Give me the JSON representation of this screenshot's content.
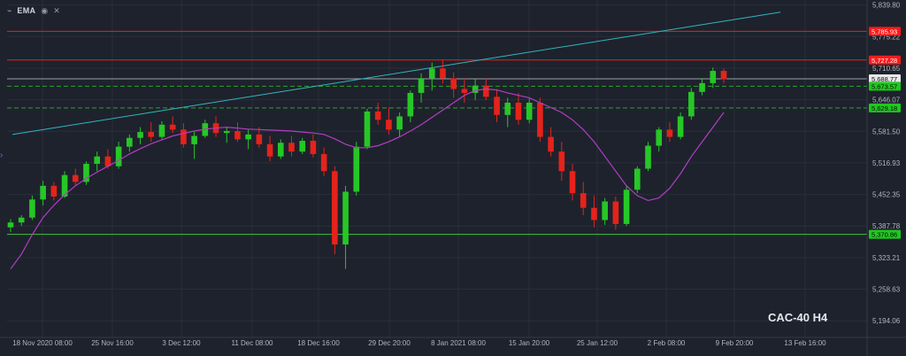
{
  "toolbar": {
    "indicator": "EMA",
    "icons": [
      "chart-icon",
      "eye-icon",
      "close-icon"
    ]
  },
  "watermark": "CAC-40 H4",
  "colors": {
    "background": "#1e222d",
    "grid": "#2a2e39",
    "axis_text": "#b2b5be",
    "up_candle": "#26c726",
    "down_candle": "#e5231b",
    "ema": "#b23ec2",
    "trendline": "#2fb7bd",
    "resistance": "#e5231b",
    "support_solid": "#3cc33c",
    "support_dashed": "#27a627",
    "label_green": "#1ec91e",
    "label_red": "#ff1a1a"
  },
  "chart_data": {
    "type": "candlestick",
    "title": "CAC-40 H4",
    "x_tick_labels": [
      "18 Nov 2020 08:00",
      "25 Nov 16:00",
      "3 Dec 12:00",
      "11 Dec 08:00",
      "18 Dec 16:00",
      "29 Dec 20:00",
      "8 Jan 2021 08:00",
      "15 Jan 20:00",
      "25 Jan 12:00",
      "2 Feb 08:00",
      "9 Feb 20:00",
      "13 Feb 16:00"
    ],
    "y_tick_labels": [
      5839.8,
      5775.22,
      5710.65,
      5646.07,
      5581.5,
      5516.93,
      5452.35,
      5387.78,
      5323.21,
      5258.63,
      5194.06
    ],
    "ylim": [
      5160,
      5850
    ],
    "price_lines": [
      {
        "name": "resistance-upper",
        "value": 5785.93,
        "style": "solid",
        "color": "red",
        "label": "5,785.93"
      },
      {
        "name": "resistance",
        "value": 5727.28,
        "style": "solid",
        "color": "red",
        "label": "5,727.28"
      },
      {
        "name": "current-price",
        "value": 5688.77,
        "style": "solid",
        "color": "grey",
        "label": "5,688.77"
      },
      {
        "name": "support-dashed-1",
        "value": 5673.57,
        "style": "dashed",
        "color": "green",
        "label": "5,673.57"
      },
      {
        "name": "support-dashed-2",
        "value": 5629.18,
        "style": "dashed",
        "color": "green",
        "label": "5,629.18"
      },
      {
        "name": "support",
        "value": 5370.86,
        "style": "solid",
        "color": "green",
        "label": "5,370.86"
      }
    ],
    "trendline": {
      "from": [
        0.0,
        5575
      ],
      "to": [
        1.0,
        5825
      ]
    },
    "series": [
      {
        "name": "EMA",
        "values": [
          5300,
          5330,
          5370,
          5405,
          5430,
          5452,
          5470,
          5485,
          5498,
          5510,
          5522,
          5535,
          5546,
          5556,
          5564,
          5572,
          5577,
          5582,
          5586,
          5588,
          5590,
          5588,
          5586,
          5585,
          5584,
          5583,
          5582,
          5580,
          5578,
          5575,
          5566,
          5555,
          5548,
          5548,
          5552,
          5560,
          5570,
          5582,
          5595,
          5610,
          5625,
          5640,
          5655,
          5665,
          5668,
          5666,
          5660,
          5655,
          5650,
          5640,
          5630,
          5620,
          5605,
          5585,
          5560,
          5530,
          5500,
          5470,
          5450,
          5440,
          5445,
          5465,
          5495,
          5530,
          5560,
          5590,
          5620
        ]
      }
    ],
    "candles_ohlc": [
      [
        5385,
        5402,
        5375,
        5395
      ],
      [
        5395,
        5410,
        5388,
        5405
      ],
      [
        5405,
        5450,
        5400,
        5442
      ],
      [
        5442,
        5480,
        5430,
        5470
      ],
      [
        5470,
        5478,
        5440,
        5448
      ],
      [
        5448,
        5500,
        5445,
        5492
      ],
      [
        5492,
        5505,
        5470,
        5478
      ],
      [
        5478,
        5520,
        5472,
        5515
      ],
      [
        5515,
        5540,
        5500,
        5530
      ],
      [
        5530,
        5545,
        5505,
        5510
      ],
      [
        5510,
        5560,
        5505,
        5550
      ],
      [
        5550,
        5575,
        5540,
        5568
      ],
      [
        5568,
        5590,
        5555,
        5580
      ],
      [
        5580,
        5600,
        5560,
        5570
      ],
      [
        5570,
        5602,
        5565,
        5595
      ],
      [
        5595,
        5612,
        5578,
        5585
      ],
      [
        5585,
        5598,
        5548,
        5555
      ],
      [
        5555,
        5580,
        5525,
        5572
      ],
      [
        5572,
        5605,
        5568,
        5598
      ],
      [
        5598,
        5612,
        5570,
        5578
      ],
      [
        5578,
        5590,
        5558,
        5582
      ],
      [
        5582,
        5600,
        5560,
        5565
      ],
      [
        5565,
        5585,
        5545,
        5575
      ],
      [
        5575,
        5590,
        5548,
        5555
      ],
      [
        5555,
        5572,
        5520,
        5530
      ],
      [
        5530,
        5565,
        5525,
        5558
      ],
      [
        5558,
        5572,
        5530,
        5540
      ],
      [
        5540,
        5568,
        5535,
        5562
      ],
      [
        5562,
        5575,
        5528,
        5535
      ],
      [
        5535,
        5548,
        5490,
        5500
      ],
      [
        5500,
        5510,
        5330,
        5350
      ],
      [
        5350,
        5470,
        5300,
        5458
      ],
      [
        5458,
        5560,
        5450,
        5550
      ],
      [
        5550,
        5628,
        5545,
        5622
      ],
      [
        5622,
        5640,
        5595,
        5605
      ],
      [
        5605,
        5630,
        5575,
        5585
      ],
      [
        5585,
        5620,
        5570,
        5612
      ],
      [
        5612,
        5665,
        5600,
        5660
      ],
      [
        5660,
        5700,
        5640,
        5690
      ],
      [
        5690,
        5722,
        5665,
        5710
      ],
      [
        5710,
        5728,
        5680,
        5690
      ],
      [
        5690,
        5702,
        5650,
        5668
      ],
      [
        5668,
        5690,
        5640,
        5660
      ],
      [
        5660,
        5688,
        5645,
        5675
      ],
      [
        5675,
        5690,
        5645,
        5652
      ],
      [
        5652,
        5668,
        5600,
        5615
      ],
      [
        5615,
        5650,
        5590,
        5640
      ],
      [
        5640,
        5660,
        5595,
        5605
      ],
      [
        5605,
        5648,
        5598,
        5640
      ],
      [
        5640,
        5650,
        5560,
        5570
      ],
      [
        5570,
        5590,
        5530,
        5540
      ],
      [
        5540,
        5560,
        5480,
        5500
      ],
      [
        5500,
        5515,
        5440,
        5455
      ],
      [
        5455,
        5478,
        5410,
        5425
      ],
      [
        5425,
        5450,
        5385,
        5400
      ],
      [
        5400,
        5445,
        5390,
        5438
      ],
      [
        5438,
        5448,
        5380,
        5392
      ],
      [
        5392,
        5470,
        5388,
        5462
      ],
      [
        5462,
        5510,
        5455,
        5505
      ],
      [
        5505,
        5560,
        5500,
        5552
      ],
      [
        5552,
        5590,
        5540,
        5585
      ],
      [
        5585,
        5600,
        5560,
        5570
      ],
      [
        5570,
        5620,
        5565,
        5612
      ],
      [
        5612,
        5670,
        5605,
        5662
      ],
      [
        5662,
        5690,
        5655,
        5680
      ],
      [
        5680,
        5712,
        5670,
        5705
      ],
      [
        5705,
        5710,
        5680,
        5688
      ]
    ]
  }
}
